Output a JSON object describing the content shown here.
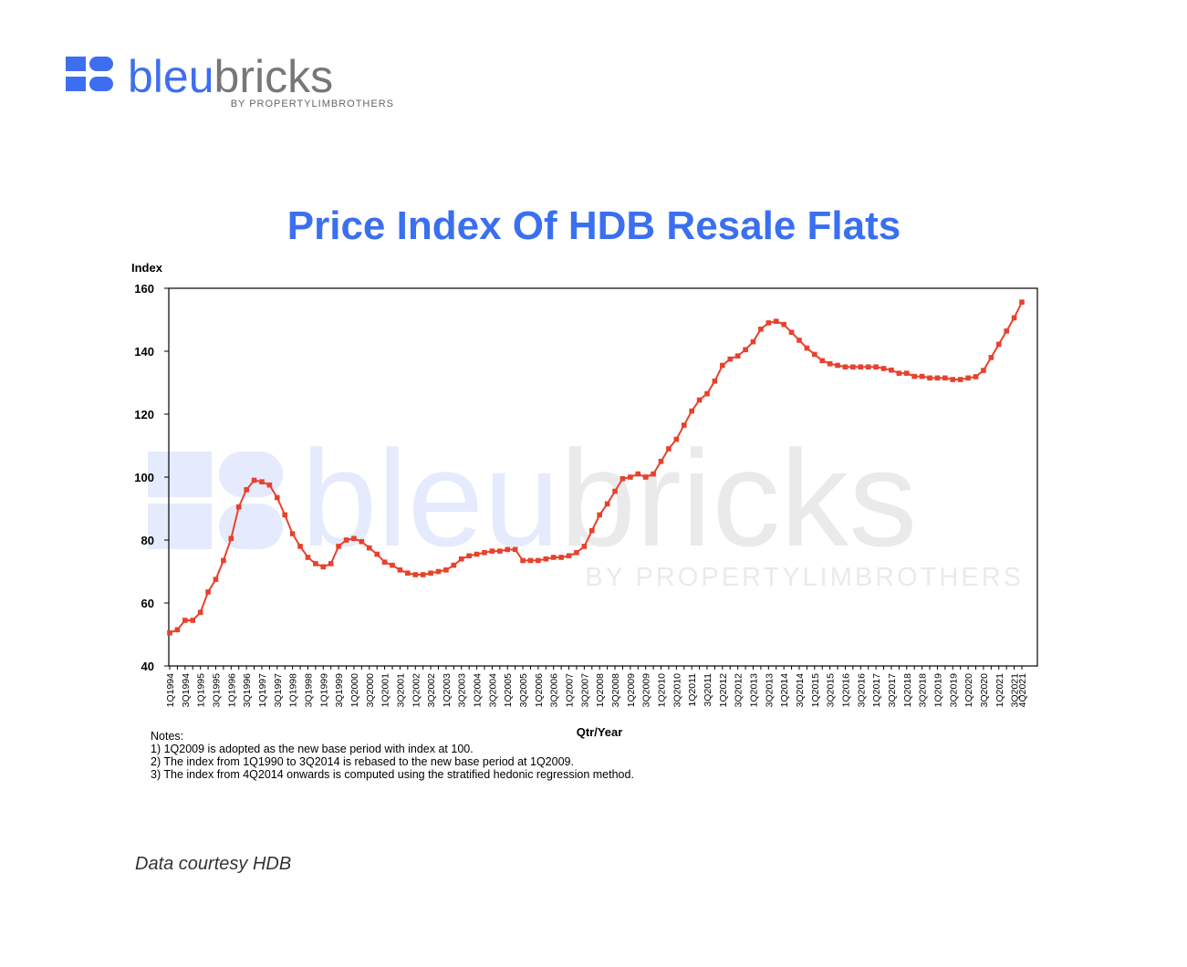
{
  "logo": {
    "brand_first": "bleu",
    "brand_second": "bricks",
    "tagline": "BY PROPERTYLIMBROTHERS"
  },
  "watermark": {
    "brand_first": "bleu",
    "brand_second": "bricks",
    "tagline": "BY PROPERTYLIMBROTHERS"
  },
  "chart_data": {
    "type": "line",
    "title": "Price Index Of HDB Resale Flats",
    "y_label": "Index",
    "x_label": "Qtr/Year",
    "categories": [
      "1Q1994",
      null,
      "3Q1994",
      null,
      "1Q1995",
      null,
      "3Q1995",
      null,
      "1Q1996",
      null,
      "3Q1996",
      null,
      "1Q1997",
      null,
      "3Q1997",
      null,
      "1Q1998",
      null,
      "3Q1998",
      null,
      "1Q1999",
      null,
      "3Q1999",
      null,
      "1Q2000",
      null,
      "3Q2000",
      null,
      "1Q2001",
      null,
      "3Q2001",
      null,
      "1Q2002",
      null,
      "3Q2002",
      null,
      "1Q2003",
      null,
      "3Q2003",
      null,
      "1Q2004",
      null,
      "3Q2004",
      null,
      "1Q2005",
      null,
      "3Q2005",
      null,
      "1Q2006",
      null,
      "3Q2006",
      null,
      "1Q2007",
      null,
      "3Q2007",
      null,
      "1Q2008",
      null,
      "3Q2008",
      null,
      "1Q2009",
      null,
      "3Q2009",
      null,
      "1Q2010",
      null,
      "3Q2010",
      null,
      "1Q2011",
      null,
      "3Q2011",
      null,
      "1Q2012",
      null,
      "3Q2012",
      null,
      "1Q2013",
      null,
      "3Q2013",
      null,
      "1Q2014",
      null,
      "3Q2014",
      null,
      "1Q2015",
      null,
      "3Q2015",
      null,
      "1Q2016",
      null,
      "3Q2016",
      null,
      "1Q2017",
      null,
      "3Q2017",
      null,
      "1Q2018",
      null,
      "3Q2018",
      null,
      "1Q2019",
      null,
      "3Q2019",
      null,
      "1Q2020",
      null,
      "3Q2020",
      null,
      "1Q2021",
      null,
      "3Q2021",
      "4Q2021"
    ],
    "series": [
      {
        "name": "Price Index",
        "color": "#e8412c",
        "values": [
          50.5,
          51.5,
          54.5,
          54.5,
          57,
          63.5,
          67.5,
          73.5,
          80.5,
          90.5,
          96,
          99,
          98.5,
          97.5,
          93.5,
          88,
          82,
          78,
          74.5,
          72.5,
          71.5,
          72.5,
          78,
          80,
          80.5,
          79.5,
          77.5,
          75.5,
          73,
          72,
          70.5,
          69.5,
          69,
          69,
          69.5,
          70,
          70.5,
          72,
          74,
          75,
          75.5,
          76,
          76.5,
          76.5,
          77,
          77,
          73.5,
          73.5,
          73.5,
          74,
          74.5,
          74.5,
          75,
          76,
          78,
          83,
          88,
          91.5,
          95.5,
          99.5,
          100,
          101,
          100,
          101,
          105,
          109,
          112,
          116.5,
          121,
          124.5,
          126.5,
          130.5,
          135.5,
          137.5,
          138.5,
          140.5,
          143,
          147,
          149,
          149.5,
          148.5,
          146,
          143.5,
          141,
          139,
          137,
          136,
          135.5,
          135,
          135,
          135,
          135,
          135,
          134.5,
          134,
          133,
          133,
          132,
          132,
          131.5,
          131.5,
          131.5,
          131,
          131,
          131.5,
          131.9,
          133.9,
          138,
          142.2,
          146.4,
          150.6,
          155.6
        ]
      }
    ],
    "ylim": [
      40,
      160
    ],
    "yticks": [
      40,
      60,
      80,
      100,
      120,
      140,
      160
    ],
    "notes": [
      "Notes:",
      "1) 1Q2009 is adopted as the new base period with index at 100.",
      "2) The index from 1Q1990 to 3Q2014 is rebased to the new base period at 1Q2009.",
      "3) The index from 4Q2014 onwards is computed using the stratified hedonic regression method."
    ],
    "source": "Data courtesy HDB"
  }
}
